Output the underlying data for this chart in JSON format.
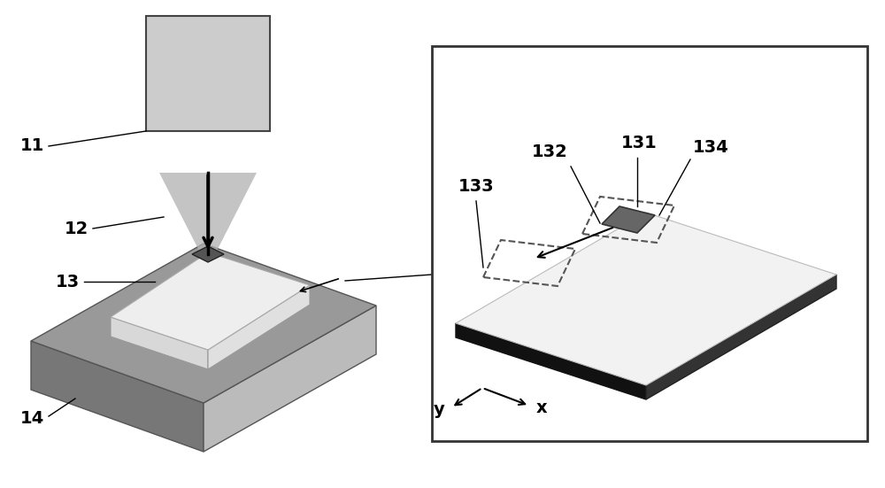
{
  "bg_color": "#ffffff",
  "label_11": "11",
  "label_12": "12",
  "label_13": "13",
  "label_14": "14",
  "label_131": "131",
  "label_132": "132",
  "label_133": "133",
  "label_134": "134",
  "laser_box_color": "#cccccc",
  "laser_box_edge": "#444444",
  "stage_top_color": "#999999",
  "stage_front_color": "#777777",
  "stage_right_color": "#bbbbbb",
  "film_top_color": "#eeeeee",
  "film_front_color": "#d8d8d8",
  "film_right_color": "#e0e0e0",
  "spot_color": "#555555",
  "beam_gray_color": "#b0b0b0",
  "inset_bg": "#ffffff",
  "inset_border": "#333333",
  "plate_top_color": "#f2f2f2",
  "plate_front_color": "#111111",
  "plate_right_color": "#333333",
  "scanned_spot_color": "#666666",
  "dashed_rect_color": "#555555",
  "font_size": 14,
  "figw": 10.0,
  "figh": 5.51
}
